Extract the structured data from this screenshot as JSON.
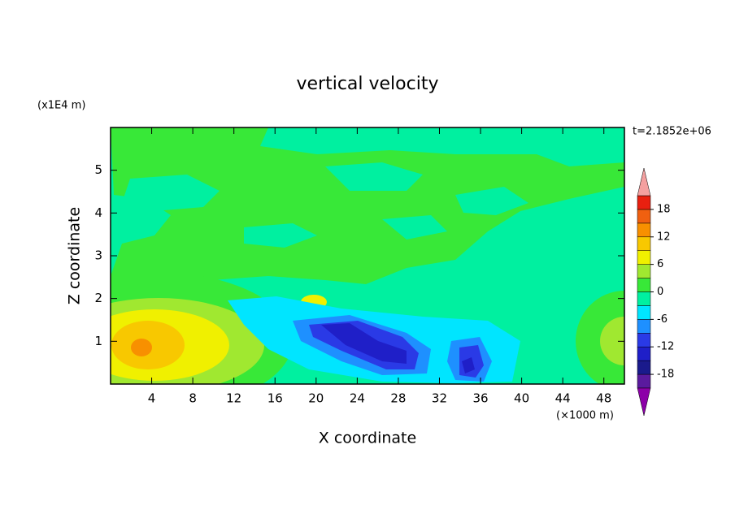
{
  "chart_data": {
    "type": "contour",
    "title": "vertical velocity",
    "x_label": "X coordinate",
    "y_label": "Z coordinate",
    "x_unit": "(×1000 m)",
    "y_unit": "(x1E4 m)",
    "annotation": "t=2.1852e+06",
    "xlim": [
      0,
      50
    ],
    "xticks": [
      4,
      8,
      12,
      16,
      20,
      24,
      28,
      32,
      36,
      40,
      44,
      48
    ],
    "ylim": [
      0,
      6
    ],
    "yticks": [
      1,
      2,
      3,
      4,
      5
    ],
    "colorbar": {
      "levels": [
        -21,
        -18,
        -15,
        -12,
        -9,
        -6,
        -3,
        0,
        3,
        6,
        9,
        12,
        15,
        18,
        21
      ],
      "ticks": [
        -18,
        -12,
        -6,
        0,
        6,
        12,
        18
      ],
      "colors": [
        "#8c00a8",
        "#5a1a9e",
        "#1a1a8c",
        "#1f1fc8",
        "#2a3ae6",
        "#1e90ff",
        "#00e5ff",
        "#00f0a0",
        "#38e838",
        "#a0e830",
        "#f0f000",
        "#f8c800",
        "#f89000",
        "#f06010",
        "#e82010",
        "#f4a0a0"
      ]
    }
  }
}
